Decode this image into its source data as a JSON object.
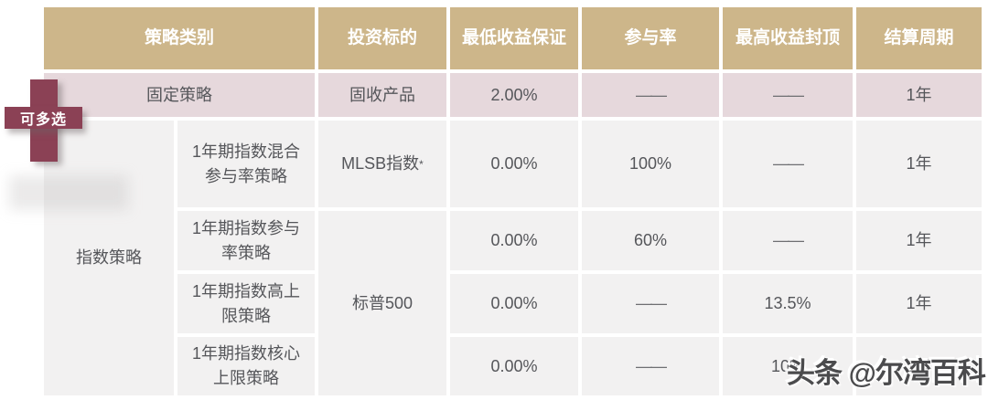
{
  "badge": {
    "label": "可多选"
  },
  "table": {
    "headers": [
      "策略类别",
      "投资标的",
      "最低收益保证",
      "参与率",
      "最高收益封顶",
      "结算周期"
    ],
    "fixed_row": {
      "category": "固定策略",
      "target": "固收产品",
      "min_return": "2.00%",
      "participation": "——",
      "cap": "——",
      "period": "1年"
    },
    "index_group": {
      "category": "指数策略",
      "shared_target": "标普500"
    },
    "index_rows": [
      {
        "name": "1年期指数混合\n参与率策略",
        "target": "MLSB指数",
        "target_sup": "*",
        "min_return": "0.00%",
        "participation": "100%",
        "cap": "——",
        "period": "1年"
      },
      {
        "name": "1年期指数参与\n率策略",
        "min_return": "0.00%",
        "participation": "60%",
        "cap": "——",
        "period": "1年"
      },
      {
        "name": "1年期指数高上\n限策略",
        "min_return": "0.00%",
        "participation": "——",
        "cap": "13.5%",
        "period": "1年"
      },
      {
        "name": "1年期指数核心\n上限策略",
        "min_return": "0.00%",
        "participation": "——",
        "cap": "10%",
        "period": "1年"
      }
    ]
  },
  "watermark": {
    "text": "头条 @尔湾百科"
  },
  "colors": {
    "header_bg": "#cdb68a",
    "fixed_row_bg": "#e6d8dc",
    "index_row_bg": "#f2f1f1",
    "badge_bg": "#8b4155",
    "header_text": "#ffffff",
    "body_text": "#55565a"
  },
  "chart_data": {
    "type": "table",
    "title": "",
    "columns": [
      "策略类别",
      "投资标的",
      "最低收益保证",
      "参与率",
      "最高收益封顶",
      "结算周期"
    ],
    "rows": [
      [
        "固定策略",
        "固收产品",
        "2.00%",
        "——",
        "——",
        "1年"
      ],
      [
        "指数策略 / 1年期指数混合参与率策略",
        "MLSB指数*",
        "0.00%",
        "100%",
        "——",
        "1年"
      ],
      [
        "指数策略 / 1年期指数参与率策略",
        "标普500",
        "0.00%",
        "60%",
        "——",
        "1年"
      ],
      [
        "指数策略 / 1年期指数高上限策略",
        "标普500",
        "0.00%",
        "——",
        "13.5%",
        "1年"
      ],
      [
        "指数策略 / 1年期指数核心上限策略",
        "标普500",
        "0.00%",
        "——",
        "10%",
        "1年"
      ]
    ],
    "annotations": [
      "可多选",
      "头条 @尔湾百科"
    ],
    "layout_hints": {
      "merged_cells": [
        "指数策略 spans index rows 1-4",
        "标普500 spans index rows 2-4",
        "策略类别 header spans two sub-columns"
      ]
    }
  }
}
